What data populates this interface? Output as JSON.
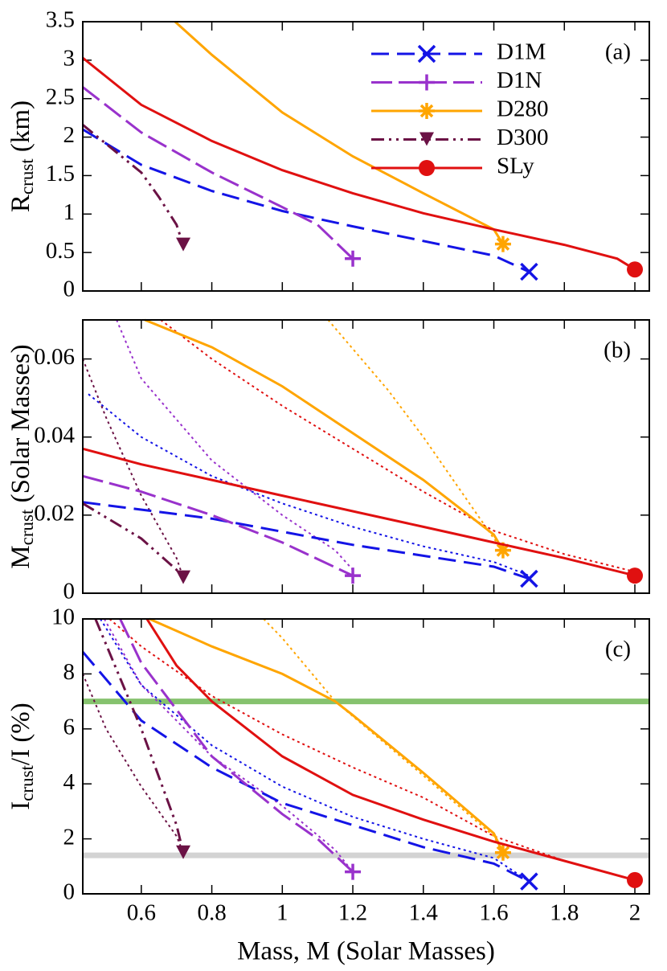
{
  "chart_data": [
    {
      "type": "line",
      "annotation": "(a)",
      "ylabel": [
        "R",
        "crust",
        " (km)"
      ],
      "xlim": [
        0.434,
        2.041
      ],
      "xticks": [
        0.6,
        0.8,
        1,
        1.2,
        1.4,
        1.6,
        1.8,
        2
      ],
      "xtick_labels": false,
      "ylim": [
        0,
        3.5
      ],
      "yticks": [
        0,
        0.5,
        1,
        1.5,
        2,
        2.5,
        3,
        3.5
      ],
      "legend": "upper right",
      "series": [
        {
          "name": "D1M",
          "color": "#1414e6",
          "style": "dashed",
          "marker": "x",
          "x": [
            0.434,
            0.6,
            0.8,
            1.0,
            1.2,
            1.4,
            1.6,
            1.7
          ],
          "values": [
            2.1,
            1.64,
            1.3,
            1.04,
            0.84,
            0.65,
            0.46,
            0.25
          ]
        },
        {
          "name": "D1N",
          "color": "#9932cc",
          "style": "longdash",
          "marker": "+",
          "x": [
            0.434,
            0.6,
            0.8,
            1.0,
            1.1,
            1.2
          ],
          "values": [
            2.65,
            2.06,
            1.54,
            1.09,
            0.86,
            0.42
          ]
        },
        {
          "name": "D280",
          "color": "#ffa500",
          "style": "solid",
          "marker": "*",
          "x": [
            0.696,
            0.8,
            1.0,
            1.2,
            1.4,
            1.6,
            1.626
          ],
          "values": [
            3.5,
            3.07,
            2.32,
            1.75,
            1.27,
            0.8,
            0.61
          ]
        },
        {
          "name": "D300",
          "color": "#6b1245",
          "style": "dashdotdot",
          "marker": "v",
          "x": [
            0.434,
            0.6,
            0.65,
            0.7,
            0.719
          ],
          "values": [
            2.16,
            1.54,
            1.22,
            0.86,
            0.6
          ]
        },
        {
          "name": "SLy",
          "color": "#e01010",
          "style": "solid",
          "marker": "o",
          "x": [
            0.434,
            0.6,
            0.8,
            1.0,
            1.2,
            1.4,
            1.6,
            1.8,
            1.95,
            2.0
          ],
          "values": [
            3.03,
            2.42,
            1.95,
            1.57,
            1.27,
            1.01,
            0.8,
            0.6,
            0.42,
            0.28
          ]
        }
      ]
    },
    {
      "type": "line",
      "annotation": "(b)",
      "ylabel": [
        "M",
        "crust",
        " (Solar Masses)"
      ],
      "xlim": [
        0.434,
        2.041
      ],
      "xticks": [
        0.6,
        0.8,
        1,
        1.2,
        1.4,
        1.6,
        1.8,
        2
      ],
      "xtick_labels": false,
      "ylim": [
        0,
        0.07
      ],
      "yticks": [
        0,
        0.02,
        0.04,
        0.06
      ],
      "series": [
        {
          "color": "#1414e6",
          "style": "dotted",
          "x": [
            0.45,
            0.6,
            0.8,
            1.0,
            1.2,
            1.4,
            1.6,
            1.7
          ],
          "values": [
            0.051,
            0.04,
            0.03,
            0.023,
            0.017,
            0.012,
            0.008,
            0.0045
          ]
        },
        {
          "color": "#9932cc",
          "style": "dotted",
          "x": [
            0.53,
            0.6,
            0.8,
            1.0,
            1.15,
            1.2
          ],
          "values": [
            0.07,
            0.055,
            0.034,
            0.02,
            0.011,
            0.006
          ]
        },
        {
          "color": "#ffa500",
          "style": "dotted",
          "x": [
            1.13,
            1.3,
            1.4,
            1.5,
            1.6,
            1.626
          ],
          "values": [
            0.07,
            0.052,
            0.04,
            0.027,
            0.014,
            0.011
          ]
        },
        {
          "color": "#6b1245",
          "style": "dotted",
          "x": [
            0.434,
            0.5,
            0.6,
            0.7,
            0.719
          ],
          "values": [
            0.06,
            0.045,
            0.025,
            0.009,
            0.004
          ]
        },
        {
          "color": "#e01010",
          "style": "dotted",
          "x": [
            0.655,
            0.8,
            1.0,
            1.2,
            1.4,
            1.6,
            1.8,
            2.0
          ],
          "values": [
            0.07,
            0.06,
            0.048,
            0.037,
            0.026,
            0.016,
            0.01,
            0.0055
          ]
        },
        {
          "color": "#1414e6",
          "style": "dashed",
          "marker": "x",
          "x": [
            0.434,
            0.8,
            1.2,
            1.6,
            1.7
          ],
          "values": [
            0.0233,
            0.0191,
            0.0124,
            0.0068,
            0.0037
          ]
        },
        {
          "color": "#9932cc",
          "style": "longdash",
          "marker": "+",
          "x": [
            0.434,
            0.6,
            0.8,
            1.0,
            1.2
          ],
          "values": [
            0.03,
            0.026,
            0.02,
            0.013,
            0.0045
          ]
        },
        {
          "color": "#ffa500",
          "style": "solid",
          "marker": "*",
          "x": [
            0.61,
            0.8,
            1.0,
            1.2,
            1.4,
            1.6,
            1.626
          ],
          "values": [
            0.07,
            0.063,
            0.053,
            0.041,
            0.029,
            0.015,
            0.011
          ]
        },
        {
          "color": "#6b1245",
          "style": "dashdotdot",
          "marker": "v",
          "x": [
            0.434,
            0.6,
            0.7,
            0.719
          ],
          "values": [
            0.023,
            0.014,
            0.006,
            0.004
          ]
        },
        {
          "color": "#e01010",
          "style": "solid",
          "marker": "o",
          "x": [
            0.434,
            0.6,
            0.8,
            1.0,
            1.2,
            1.4,
            1.6,
            1.8,
            2.0
          ],
          "values": [
            0.037,
            0.033,
            0.029,
            0.025,
            0.021,
            0.017,
            0.013,
            0.009,
            0.0045
          ]
        }
      ]
    },
    {
      "type": "line",
      "annotation": "(c)",
      "ylabel": [
        "I",
        "crust",
        "/I (%)"
      ],
      "xlabel": "Mass, M (Solar Masses)",
      "xlim": [
        0.434,
        2.041
      ],
      "xticks": [
        0.6,
        0.8,
        1,
        1.2,
        1.4,
        1.6,
        1.8,
        2
      ],
      "xtick_labels": true,
      "ylim": [
        0,
        10
      ],
      "yticks": [
        0,
        2,
        4,
        6,
        8,
        10
      ],
      "hlines": [
        {
          "value": 7,
          "color": "#86c26e"
        },
        {
          "value": 1.4,
          "color": "#d3d3d3"
        }
      ],
      "series": [
        {
          "color": "#1414e6",
          "style": "dotted",
          "x": [
            0.484,
            0.6,
            0.8,
            1.0,
            1.2,
            1.4,
            1.6,
            1.7
          ],
          "values": [
            10,
            7.6,
            5.4,
            3.9,
            2.8,
            2.0,
            1.3,
            0.45
          ]
        },
        {
          "color": "#9932cc",
          "style": "dotted",
          "x": [
            0.495,
            0.6,
            0.8,
            1.0,
            1.15,
            1.2
          ],
          "values": [
            10,
            7.6,
            5.0,
            3.2,
            1.6,
            0.8
          ]
        },
        {
          "color": "#ffa500",
          "style": "dotted",
          "x": [
            0.947,
            1.0,
            1.15,
            1.4,
            1.6,
            1.626
          ],
          "values": [
            10,
            9.3,
            7.0,
            4.3,
            2.1,
            1.5
          ]
        },
        {
          "color": "#6b1245",
          "style": "dotted",
          "x": [
            0.434,
            0.5,
            0.6,
            0.7,
            0.719
          ],
          "values": [
            8.0,
            6.0,
            3.9,
            2.1,
            1.5
          ]
        },
        {
          "color": "#e01010",
          "style": "dotted",
          "x": [
            0.51,
            0.6,
            0.8,
            1.0,
            1.2,
            1.4,
            1.6,
            1.8,
            2.0
          ],
          "values": [
            10,
            9.0,
            7.2,
            5.8,
            4.6,
            3.5,
            2.1,
            1.2,
            0.5
          ]
        },
        {
          "color": "#1414e6",
          "style": "dashed",
          "marker": "x",
          "x": [
            0.434,
            0.6,
            0.8,
            1.0,
            1.2,
            1.4,
            1.6,
            1.7
          ],
          "values": [
            8.8,
            6.3,
            4.6,
            3.3,
            2.5,
            1.7,
            1.1,
            0.45
          ]
        },
        {
          "color": "#9932cc",
          "style": "longdash",
          "marker": "+",
          "x": [
            0.54,
            0.6,
            0.8,
            1.0,
            1.1,
            1.2
          ],
          "values": [
            10,
            8.4,
            5.0,
            2.9,
            2.0,
            0.8
          ]
        },
        {
          "color": "#ffa500",
          "style": "solid",
          "marker": "*",
          "x": [
            0.623,
            0.8,
            1.0,
            1.15,
            1.2,
            1.4,
            1.6,
            1.626
          ],
          "values": [
            10,
            9.0,
            8.0,
            7.0,
            6.5,
            4.4,
            2.2,
            1.5
          ]
        },
        {
          "color": "#6b1245",
          "style": "dashdotdot",
          "marker": "v",
          "x": [
            0.47,
            0.6,
            0.7,
            0.719
          ],
          "values": [
            10,
            6.0,
            2.5,
            1.5
          ]
        },
        {
          "color": "#e01010",
          "style": "solid",
          "marker": "o",
          "x": [
            0.616,
            0.7,
            0.8,
            1.0,
            1.2,
            1.4,
            1.6,
            1.8,
            2.0
          ],
          "values": [
            10,
            8.3,
            7.0,
            5.0,
            3.6,
            2.7,
            1.9,
            1.2,
            0.5
          ]
        }
      ]
    }
  ]
}
